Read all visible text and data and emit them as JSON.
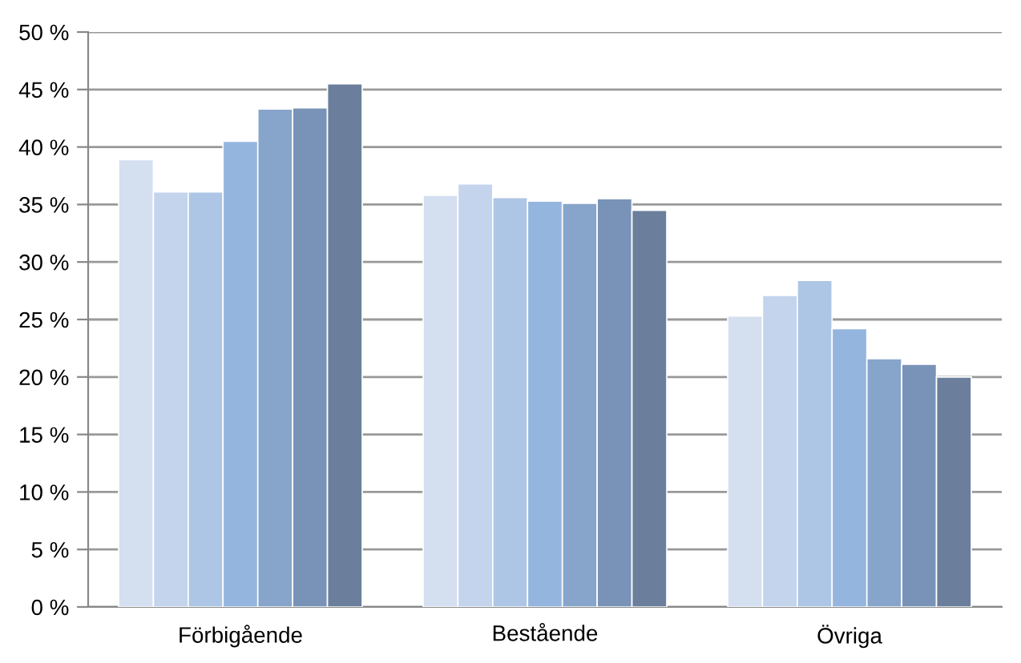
{
  "chart_data": {
    "type": "bar",
    "categories": [
      "Förbigående",
      "Bestående",
      "Övriga"
    ],
    "series": [
      {
        "color": "#d4dff0",
        "values": [
          38.9,
          35.8,
          25.3
        ]
      },
      {
        "color": "#c3d4ec",
        "values": [
          36.1,
          36.8,
          27.1
        ]
      },
      {
        "color": "#adc6e5",
        "values": [
          36.1,
          35.6,
          28.4
        ]
      },
      {
        "color": "#94b5de",
        "values": [
          40.5,
          35.3,
          24.2
        ]
      },
      {
        "color": "#87a5ca",
        "values": [
          43.3,
          35.1,
          21.6
        ]
      },
      {
        "color": "#7893b7",
        "values": [
          43.4,
          35.5,
          21.1
        ]
      },
      {
        "color": "#6b7f9c",
        "values": [
          45.5,
          34.5,
          20.0
        ]
      }
    ],
    "ylim": [
      0,
      50
    ],
    "yticks": [
      {
        "value": 0,
        "label": "0 %"
      },
      {
        "value": 5,
        "label": "5 %"
      },
      {
        "value": 10,
        "label": "10 %"
      },
      {
        "value": 15,
        "label": "15 %"
      },
      {
        "value": 20,
        "label": "20 %"
      },
      {
        "value": 25,
        "label": "25 %"
      },
      {
        "value": 30,
        "label": "30 %"
      },
      {
        "value": 35,
        "label": "35 %"
      },
      {
        "value": 40,
        "label": "40 %"
      },
      {
        "value": 45,
        "label": "45 %"
      },
      {
        "value": 50,
        "label": "50 %"
      }
    ],
    "grid": "y"
  }
}
